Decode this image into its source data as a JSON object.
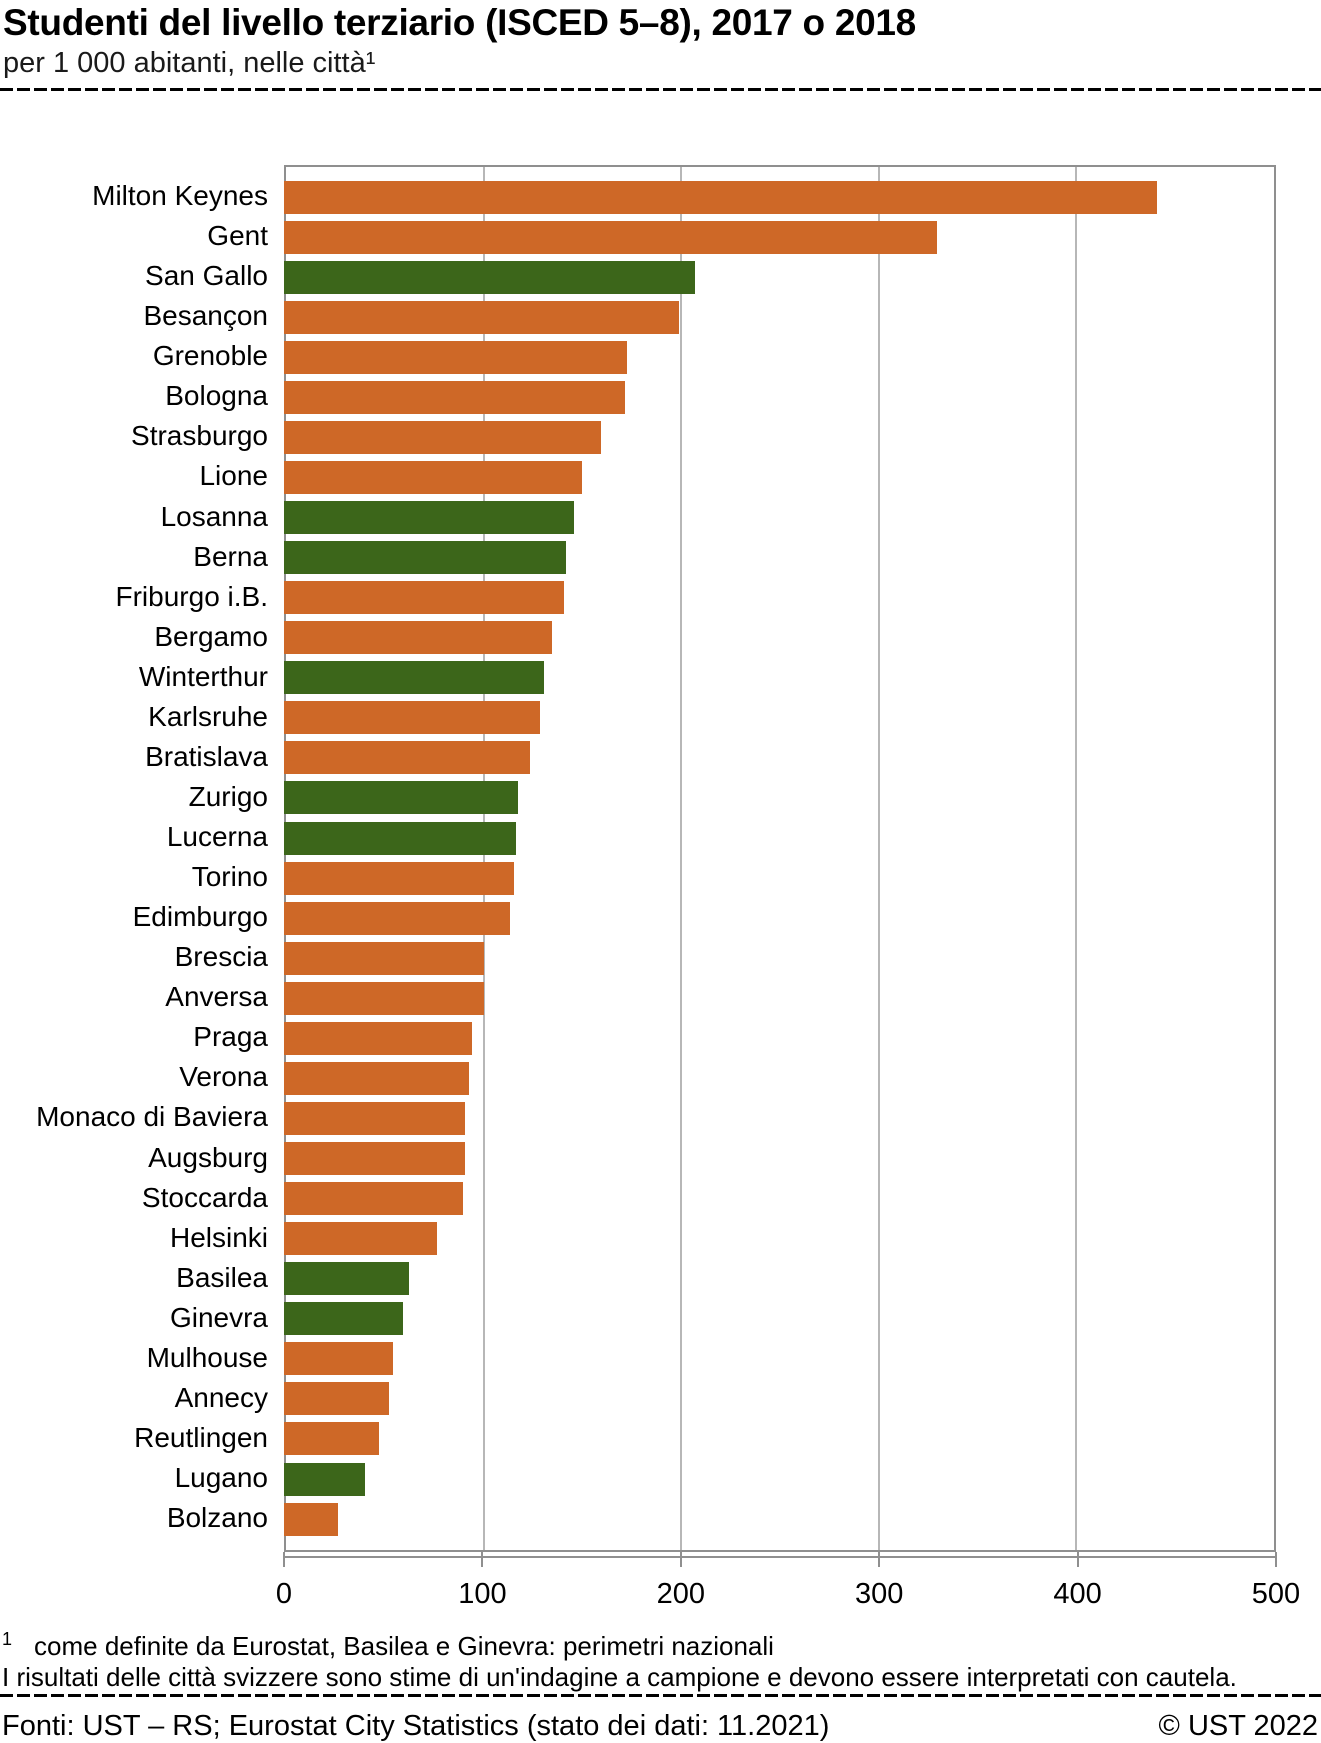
{
  "header": {
    "title": "Studenti del livello terziario (ISCED 5–8), 2017 o 2018",
    "subtitle": "per 1 000 abitanti, nelle città¹"
  },
  "chart_data": {
    "type": "bar",
    "orientation": "horizontal",
    "title": "Studenti del livello terziario (ISCED 5–8), 2017 o 2018",
    "subtitle": "per 1 000 abitanti, nelle città¹",
    "xlabel": "",
    "ylabel": "",
    "xlim": [
      0,
      500
    ],
    "x_ticks": [
      0,
      100,
      200,
      300,
      400,
      500
    ],
    "grid": "vertical",
    "legend": "none",
    "colors": {
      "other_city": "#CE6827",
      "swiss_city": "#3C661A"
    },
    "categories": [
      "Milton Keynes",
      "Gent",
      "San Gallo",
      "Besançon",
      "Grenoble",
      "Bologna",
      "Strasburgo",
      "Lione",
      "Losanna",
      "Berna",
      "Friburgo i.B.",
      "Bergamo",
      "Winterthur",
      "Karlsruhe",
      "Bratislava",
      "Zurigo",
      "Lucerna",
      "Torino",
      "Edimburgo",
      "Brescia",
      "Anversa",
      "Praga",
      "Verona",
      "Monaco di Baviera",
      "Augsburg",
      "Stoccarda",
      "Helsinki",
      "Basilea",
      "Ginevra",
      "Mulhouse",
      "Annecy",
      "Reutlingen",
      "Lugano",
      "Bolzano"
    ],
    "values": [
      440,
      329,
      207,
      199,
      173,
      172,
      160,
      150,
      146,
      142,
      141,
      135,
      131,
      129,
      124,
      118,
      117,
      116,
      114,
      101,
      101,
      95,
      93,
      91,
      91,
      90,
      77,
      63,
      60,
      55,
      53,
      48,
      41,
      27
    ],
    "bars": [
      {
        "label": "Milton Keynes",
        "value": 440,
        "group": "other_city"
      },
      {
        "label": "Gent",
        "value": 329,
        "group": "other_city"
      },
      {
        "label": "San Gallo",
        "value": 207,
        "group": "swiss_city"
      },
      {
        "label": "Besançon",
        "value": 199,
        "group": "other_city"
      },
      {
        "label": "Grenoble",
        "value": 173,
        "group": "other_city"
      },
      {
        "label": "Bologna",
        "value": 172,
        "group": "other_city"
      },
      {
        "label": "Strasburgo",
        "value": 160,
        "group": "other_city"
      },
      {
        "label": "Lione",
        "value": 150,
        "group": "other_city"
      },
      {
        "label": "Losanna",
        "value": 146,
        "group": "swiss_city"
      },
      {
        "label": "Berna",
        "value": 142,
        "group": "swiss_city"
      },
      {
        "label": "Friburgo i.B.",
        "value": 141,
        "group": "other_city"
      },
      {
        "label": "Bergamo",
        "value": 135,
        "group": "other_city"
      },
      {
        "label": "Winterthur",
        "value": 131,
        "group": "swiss_city"
      },
      {
        "label": "Karlsruhe",
        "value": 129,
        "group": "other_city"
      },
      {
        "label": "Bratislava",
        "value": 124,
        "group": "other_city"
      },
      {
        "label": "Zurigo",
        "value": 118,
        "group": "swiss_city"
      },
      {
        "label": "Lucerna",
        "value": 117,
        "group": "swiss_city"
      },
      {
        "label": "Torino",
        "value": 116,
        "group": "other_city"
      },
      {
        "label": "Edimburgo",
        "value": 114,
        "group": "other_city"
      },
      {
        "label": "Brescia",
        "value": 101,
        "group": "other_city"
      },
      {
        "label": "Anversa",
        "value": 101,
        "group": "other_city"
      },
      {
        "label": "Praga",
        "value": 95,
        "group": "other_city"
      },
      {
        "label": "Verona",
        "value": 93,
        "group": "other_city"
      },
      {
        "label": "Monaco di Baviera",
        "value": 91,
        "group": "other_city"
      },
      {
        "label": "Augsburg",
        "value": 91,
        "group": "other_city"
      },
      {
        "label": "Stoccarda",
        "value": 90,
        "group": "other_city"
      },
      {
        "label": "Helsinki",
        "value": 77,
        "group": "other_city"
      },
      {
        "label": "Basilea",
        "value": 63,
        "group": "swiss_city"
      },
      {
        "label": "Ginevra",
        "value": 60,
        "group": "swiss_city"
      },
      {
        "label": "Mulhouse",
        "value": 55,
        "group": "other_city"
      },
      {
        "label": "Annecy",
        "value": 53,
        "group": "other_city"
      },
      {
        "label": "Reutlingen",
        "value": 48,
        "group": "other_city"
      },
      {
        "label": "Lugano",
        "value": 41,
        "group": "swiss_city"
      },
      {
        "label": "Bolzano",
        "value": 27,
        "group": "other_city"
      }
    ]
  },
  "footnotes": {
    "footnote1_marker": "1",
    "footnote1_text": "come definite da Eurostat, Basilea e Ginevra: perimetri nazionali",
    "footnote2_text": "I risultati delle città svizzere sono stime di un'indagine a campione e devono essere interpretati con cautela."
  },
  "footer": {
    "sources": "Fonti: UST – RS; Eurostat City Statistics (stato dei dati: 11.2021)",
    "copyright": "© UST 2022"
  }
}
